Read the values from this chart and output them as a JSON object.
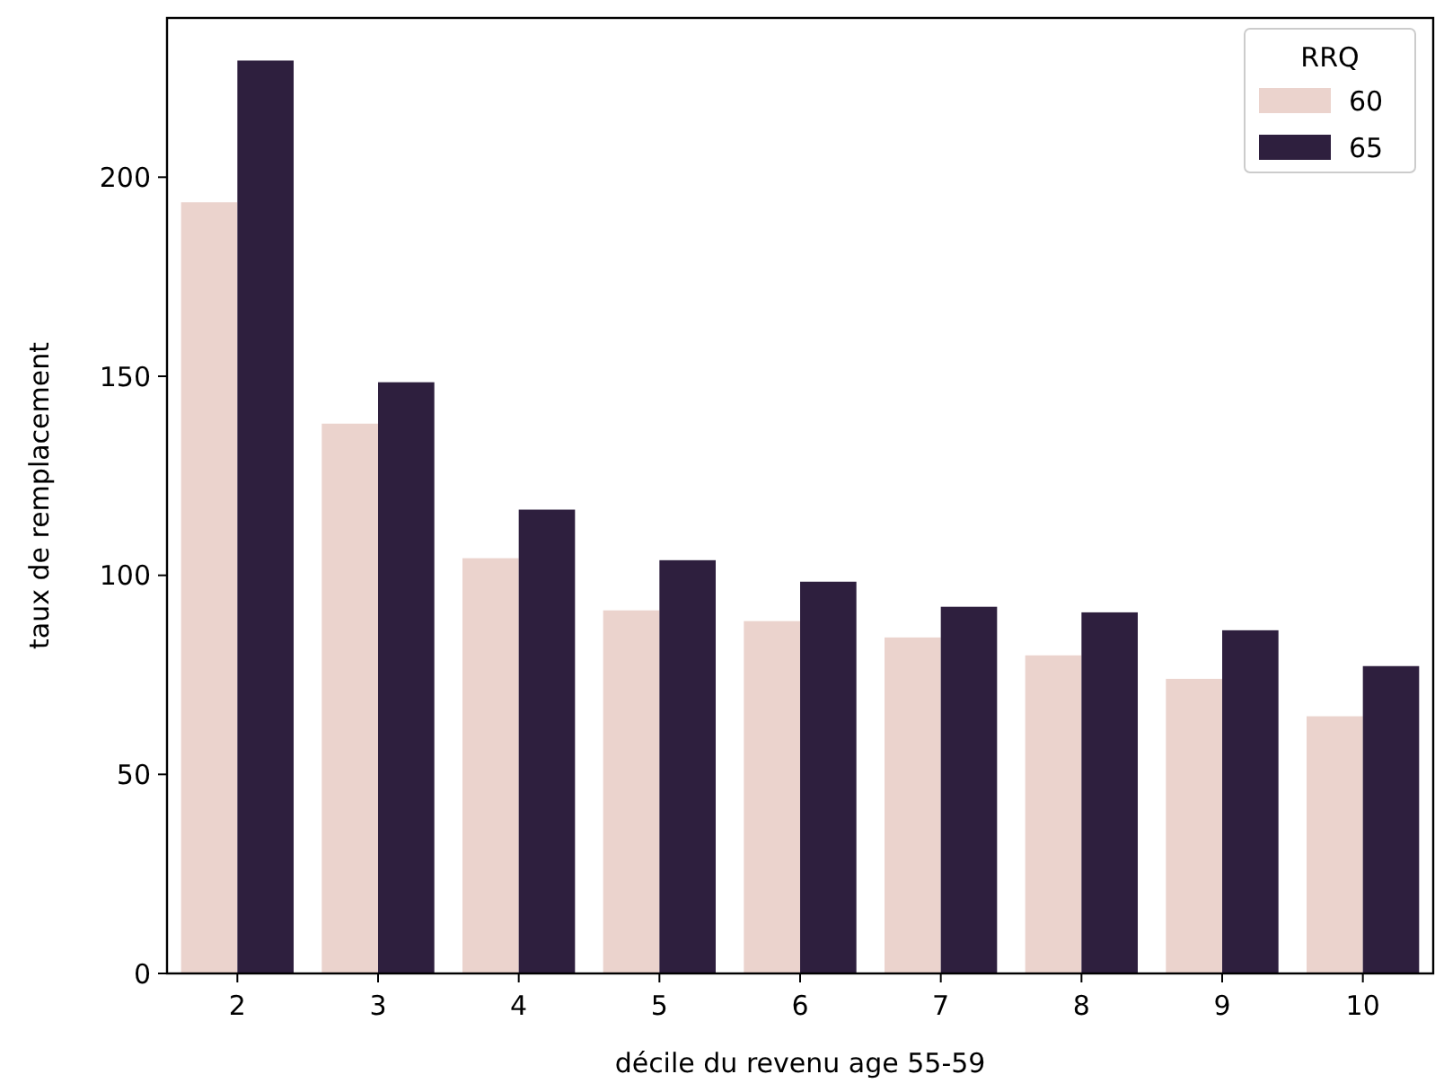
{
  "chart_data": {
    "type": "bar",
    "xlabel": "décile du revenu age 55-59",
    "ylabel": "taux de remplacement",
    "legend_title": "RRQ",
    "categories": [
      "2",
      "3",
      "4",
      "5",
      "6",
      "7",
      "8",
      "9",
      "10"
    ],
    "series": [
      {
        "name": "60",
        "color": "#ebd3cd",
        "values": [
          193.7,
          138.1,
          104.3,
          91.2,
          88.5,
          84.4,
          79.9,
          74.0,
          64.6
        ]
      },
      {
        "name": "65",
        "color": "#2e1f3e",
        "values": [
          229.3,
          148.5,
          116.5,
          103.8,
          98.4,
          92.1,
          90.7,
          86.2,
          77.2
        ]
      }
    ],
    "ylim": [
      0,
      240
    ],
    "yticks": [
      0,
      50,
      100,
      150,
      200
    ],
    "grid": false,
    "legend": "top right"
  }
}
